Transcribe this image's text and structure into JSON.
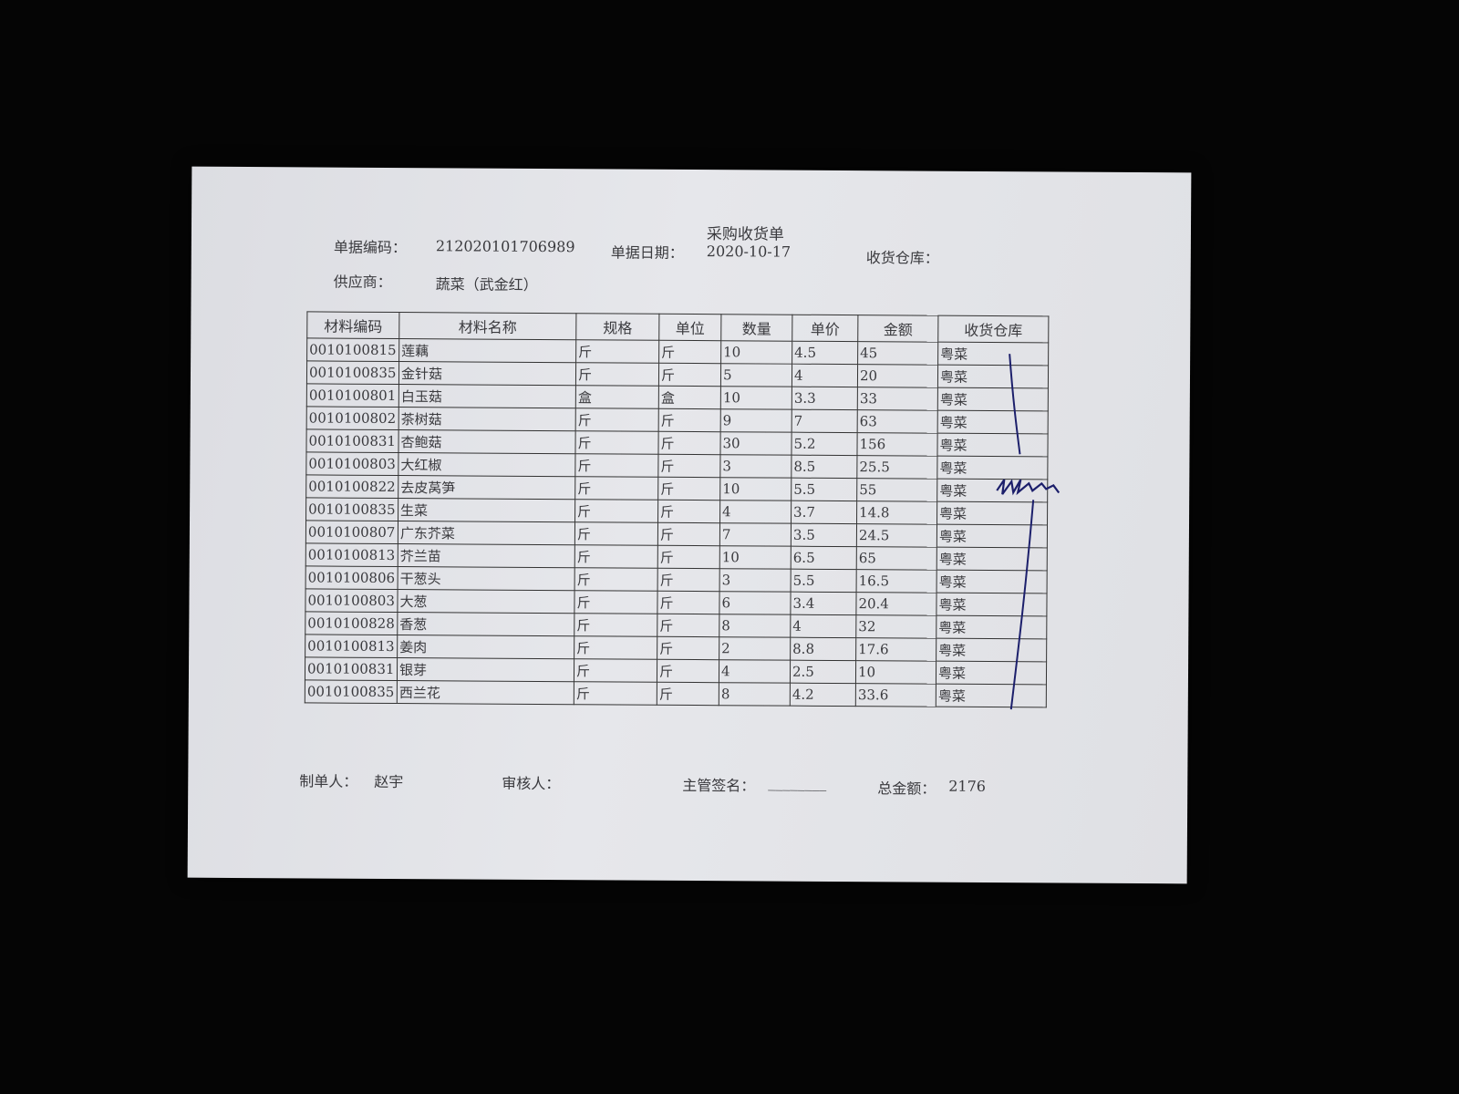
{
  "document": {
    "title": "采购收货单",
    "doc_no_label": "单据编码：",
    "doc_no": "212020101706989",
    "date_label": "单据日期：",
    "date": "2020-10-17",
    "warehouse_label": "收货仓库：",
    "supplier_label": "供应商：",
    "supplier": "蔬菜（武金红）"
  },
  "table": {
    "headers": [
      "材料编码",
      "材料名称",
      "规格",
      "单位",
      "数量",
      "单价",
      "金额",
      "收货仓库"
    ],
    "rows": [
      [
        "0010100815",
        "莲藕",
        "斤",
        "斤",
        "10",
        "4.5",
        "45",
        "粤菜"
      ],
      [
        "0010100835",
        "金针菇",
        "斤",
        "斤",
        "5",
        "4",
        "20",
        "粤菜"
      ],
      [
        "0010100801",
        "白玉菇",
        "盒",
        "盒",
        "10",
        "3.3",
        "33",
        "粤菜"
      ],
      [
        "0010100802",
        "茶树菇",
        "斤",
        "斤",
        "9",
        "7",
        "63",
        "粤菜"
      ],
      [
        "0010100831",
        "杏鲍菇",
        "斤",
        "斤",
        "30",
        "5.2",
        "156",
        "粤菜"
      ],
      [
        "0010100803",
        "大红椒",
        "斤",
        "斤",
        "3",
        "8.5",
        "25.5",
        "粤菜"
      ],
      [
        "0010100822",
        "去皮莴笋",
        "斤",
        "斤",
        "10",
        "5.5",
        "55",
        "粤菜"
      ],
      [
        "0010100835",
        "生菜",
        "斤",
        "斤",
        "4",
        "3.7",
        "14.8",
        "粤菜"
      ],
      [
        "0010100807",
        "广东芥菜",
        "斤",
        "斤",
        "7",
        "3.5",
        "24.5",
        "粤菜"
      ],
      [
        "0010100813",
        "芥兰苗",
        "斤",
        "斤",
        "10",
        "6.5",
        "65",
        "粤菜"
      ],
      [
        "0010100806",
        "干葱头",
        "斤",
        "斤",
        "3",
        "5.5",
        "16.5",
        "粤菜"
      ],
      [
        "0010100803",
        "大葱",
        "斤",
        "斤",
        "6",
        "3.4",
        "20.4",
        "粤菜"
      ],
      [
        "0010100828",
        "香葱",
        "斤",
        "斤",
        "8",
        "4",
        "32",
        "粤菜"
      ],
      [
        "0010100813",
        "姜肉",
        "斤",
        "斤",
        "2",
        "8.8",
        "17.6",
        "粤菜"
      ],
      [
        "0010100831",
        "银芽",
        "斤",
        "斤",
        "4",
        "2.5",
        "10",
        "粤菜"
      ],
      [
        "0010100835",
        "西兰花",
        "斤",
        "斤",
        "8",
        "4.2",
        "33.6",
        "粤菜"
      ]
    ]
  },
  "footer": {
    "maker_label": "制单人：",
    "maker": "赵宇",
    "reviewer_label": "审核人：",
    "manager_label": "主管签名：",
    "manager_blank": "________",
    "total_label": "总金额：",
    "total": "2176"
  },
  "colors": {
    "ink": "#3a3a3e",
    "signature": "#1c1f6b",
    "background": "#050505"
  }
}
